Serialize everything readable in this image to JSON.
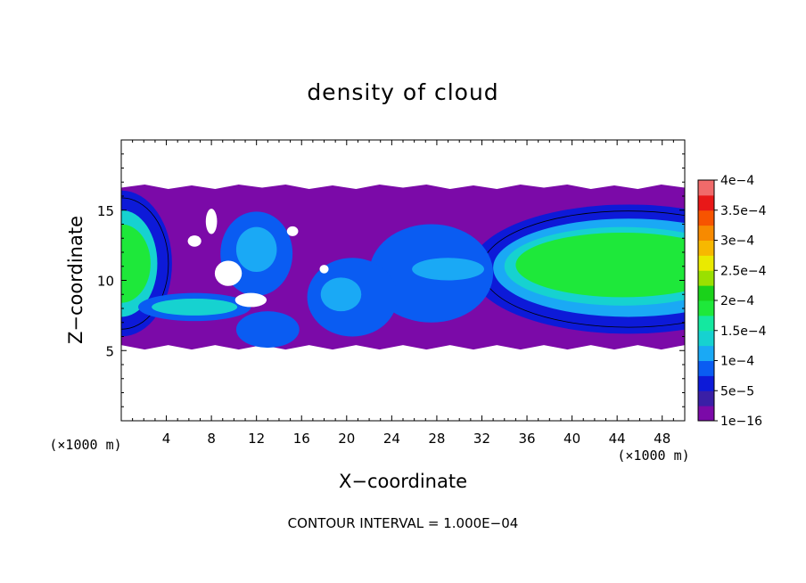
{
  "chart_data": {
    "type": "heatmap",
    "title": "density of cloud",
    "xlabel": "X−coordinate",
    "ylabel": "Z−coordinate",
    "x_unit": "(×1000 m)",
    "y_unit": "(×1000 m)",
    "xlim": [
      0,
      50
    ],
    "ylim": [
      0,
      20
    ],
    "x_ticks": [
      4,
      8,
      12,
      16,
      20,
      24,
      28,
      32,
      36,
      40,
      44,
      48
    ],
    "y_ticks": [
      5,
      10,
      15
    ],
    "footer": "CONTOUR INTERVAL = 1.000E−04",
    "contour_interval": 0.0001,
    "grid": false,
    "colorbar": {
      "position": "right",
      "labels": [
        "1e−16",
        "5e−5",
        "1e−4",
        "1.5e−4",
        "2e−4",
        "2.5e−4",
        "3e−4",
        "3.5e−4",
        "4e−4"
      ],
      "values": [
        1e-16,
        5e-05,
        0.0001,
        0.00015,
        0.0002,
        0.00025,
        0.0003,
        0.00035,
        0.0004
      ],
      "colors": [
        "#7b0aa8",
        "#3a1fa6",
        "#0d1ad8",
        "#0a5cf2",
        "#1aa9f5",
        "#16d2d0",
        "#14e8a0",
        "#1ee83a",
        "#1ad21a",
        "#9ae000",
        "#eaea00",
        "#f7b800",
        "#f78a00",
        "#f75400",
        "#e81818",
        "#f06a6a"
      ]
    },
    "regions": [
      {
        "level": 0,
        "kind": "cloud-base",
        "x": [
          0,
          50
        ],
        "z": [
          5.2,
          16.7
        ]
      },
      {
        "level": 2,
        "kind": "blob",
        "cx": 45,
        "cz": 10.8,
        "rx": 14,
        "rz": 4.6
      },
      {
        "level": 4,
        "kind": "blob",
        "cx": 45,
        "cz": 10.9,
        "rx": 12,
        "rz": 3.5
      },
      {
        "level": 5,
        "kind": "blob",
        "cx": 44.5,
        "cz": 11,
        "rx": 10.5,
        "rz": 2.8
      },
      {
        "level": 7,
        "kind": "blob",
        "cx": 44.5,
        "cz": 11.1,
        "rx": 9.5,
        "rz": 2.3
      },
      {
        "level": 2,
        "kind": "blob",
        "cx": 0,
        "cz": 11.2,
        "rx": 4.5,
        "rz": 5.2
      },
      {
        "level": 5,
        "kind": "blob",
        "cx": 0,
        "cz": 11.2,
        "rx": 3.2,
        "rz": 3.8
      },
      {
        "level": 7,
        "kind": "blob",
        "cx": 0,
        "cz": 11.2,
        "rx": 2.6,
        "rz": 2.8
      },
      {
        "level": 3,
        "kind": "blob",
        "cx": 12,
        "cz": 11.9,
        "rx": 3.2,
        "rz": 3.0
      },
      {
        "level": 4,
        "kind": "blob",
        "cx": 12,
        "cz": 12.2,
        "rx": 1.8,
        "rz": 1.6
      },
      {
        "level": 3,
        "kind": "blob",
        "cx": 6.5,
        "cz": 8.1,
        "rx": 5.0,
        "rz": 1.0
      },
      {
        "level": 5,
        "kind": "blob",
        "cx": 6.5,
        "cz": 8.1,
        "rx": 3.8,
        "rz": 0.6
      },
      {
        "level": 3,
        "kind": "blob",
        "cx": 27.5,
        "cz": 10.5,
        "rx": 5.5,
        "rz": 3.5
      },
      {
        "level": 4,
        "kind": "blob",
        "cx": 29,
        "cz": 10.8,
        "rx": 3.2,
        "rz": 0.8
      },
      {
        "level": 3,
        "kind": "blob",
        "cx": 20.5,
        "cz": 8.8,
        "rx": 4.0,
        "rz": 2.8
      },
      {
        "level": 4,
        "kind": "blob",
        "cx": 19.5,
        "cz": 9.0,
        "rx": 1.8,
        "rz": 1.2
      },
      {
        "level": 3,
        "kind": "blob",
        "cx": 13,
        "cz": 6.5,
        "rx": 2.8,
        "rz": 1.3
      }
    ],
    "gaps": [
      {
        "cx": 6.5,
        "cz": 12.8,
        "rx": 0.6,
        "rz": 0.4
      },
      {
        "cx": 9.5,
        "cz": 10.5,
        "rx": 1.2,
        "rz": 0.9
      },
      {
        "cx": 11.5,
        "cz": 8.6,
        "rx": 1.4,
        "rz": 0.5
      },
      {
        "cx": 8.0,
        "cz": 14.2,
        "rx": 0.5,
        "rz": 0.9
      },
      {
        "cx": 15.2,
        "cz": 13.5,
        "rx": 0.5,
        "rz": 0.35
      },
      {
        "cx": 18.0,
        "cz": 10.8,
        "rx": 0.4,
        "rz": 0.3
      }
    ]
  }
}
